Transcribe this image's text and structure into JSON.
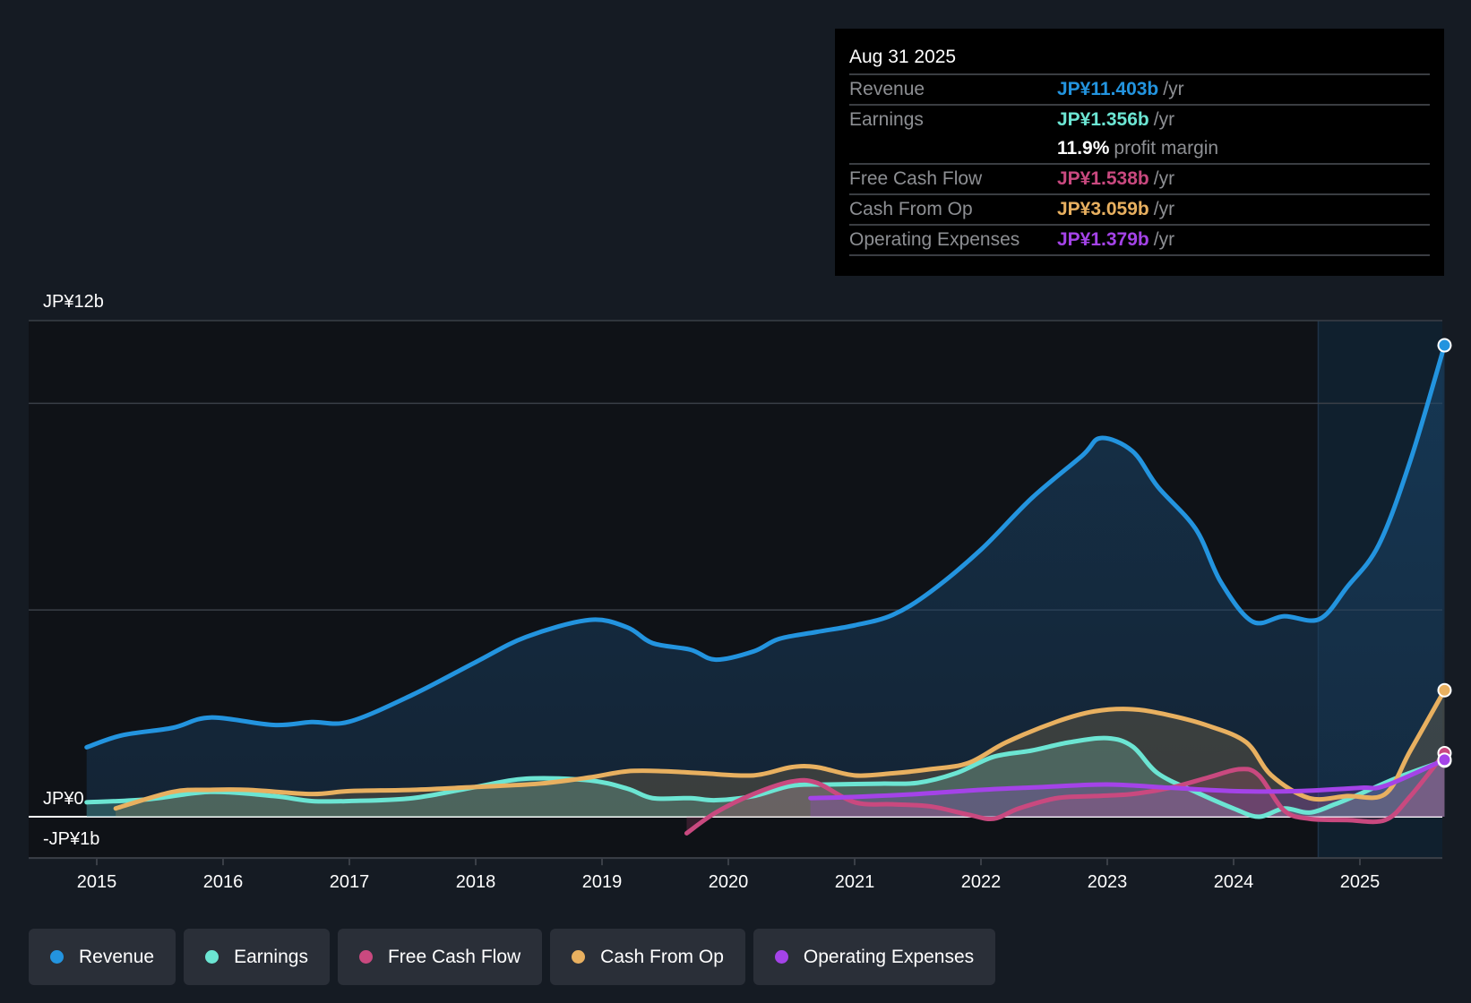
{
  "tooltip": {
    "date": "Aug 31 2025",
    "rows": [
      {
        "label": "Revenue",
        "value": "JP¥11.403b",
        "unit": "/yr",
        "color": "#2394df"
      },
      {
        "label": "Earnings",
        "value": "JP¥1.356b",
        "unit": "/yr",
        "color": "#6ce5d3"
      },
      {
        "label": "",
        "value": "11.9%",
        "unit": "profit margin",
        "color": "#ffffff"
      },
      {
        "label": "Free Cash Flow",
        "value": "JP¥1.538b",
        "unit": "/yr",
        "color": "#c9497f"
      },
      {
        "label": "Cash From Op",
        "value": "JP¥3.059b",
        "unit": "/yr",
        "color": "#e8b060"
      },
      {
        "label": "Operating Expenses",
        "value": "JP¥1.379b",
        "unit": "/yr",
        "color": "#a443e8"
      }
    ]
  },
  "legend": [
    {
      "label": "Revenue",
      "color": "#2394df"
    },
    {
      "label": "Earnings",
      "color": "#6ce5d3"
    },
    {
      "label": "Free Cash Flow",
      "color": "#c9497f"
    },
    {
      "label": "Cash From Op",
      "color": "#e8b060"
    },
    {
      "label": "Operating Expenses",
      "color": "#a443e8"
    }
  ],
  "chart_data": {
    "type": "area",
    "title": "",
    "xlabel": "",
    "ylabel": "",
    "y_unit": "JP¥ billions",
    "ylim": [
      -1,
      12
    ],
    "xlim": [
      2014.4,
      2025.85
    ],
    "y_labels": [
      {
        "value": 12,
        "label": "JP¥12b"
      },
      {
        "value": 0,
        "label": "JP¥0"
      },
      {
        "value": -1,
        "label": "-JP¥1b"
      }
    ],
    "gridlines": [
      12,
      10,
      5,
      0,
      -1
    ],
    "x_ticks": [
      2015,
      2016,
      2017,
      2018,
      2019,
      2020,
      2021,
      2022,
      2023,
      2024,
      2025
    ],
    "x_tick_labels": [
      "2015",
      "2016",
      "2017",
      "2018",
      "2019",
      "2020",
      "2021",
      "2022",
      "2023",
      "2024",
      "2025"
    ],
    "highlight_start": 2024.67,
    "legend_position": "bottom",
    "series": [
      {
        "name": "Revenue",
        "color": "#2394df",
        "x": [
          2014.92,
          2015.2,
          2015.6,
          2015.9,
          2016.4,
          2016.7,
          2017.0,
          2017.5,
          2018.0,
          2018.4,
          2018.9,
          2019.2,
          2019.4,
          2019.7,
          2019.9,
          2020.2,
          2020.4,
          2020.7,
          2021.0,
          2021.3,
          2021.6,
          2022.0,
          2022.4,
          2022.8,
          2022.95,
          2023.2,
          2023.4,
          2023.7,
          2023.9,
          2024.15,
          2024.4,
          2024.68,
          2024.9,
          2025.15,
          2025.4,
          2025.67
        ],
        "values": [
          1.68,
          1.97,
          2.15,
          2.4,
          2.22,
          2.29,
          2.3,
          2.95,
          3.74,
          4.35,
          4.76,
          4.58,
          4.2,
          4.04,
          3.8,
          4.0,
          4.3,
          4.47,
          4.63,
          4.88,
          5.44,
          6.46,
          7.7,
          8.73,
          9.16,
          8.84,
          7.98,
          6.96,
          5.67,
          4.72,
          4.85,
          4.78,
          5.56,
          6.58,
          8.62,
          11.403
        ]
      },
      {
        "name": "Earnings",
        "color": "#6ce5d3",
        "x": [
          2014.92,
          2015.4,
          2015.9,
          2016.4,
          2016.7,
          2017.0,
          2017.5,
          2018.0,
          2018.4,
          2018.9,
          2019.2,
          2019.4,
          2019.7,
          2019.9,
          2020.2,
          2020.5,
          2020.8,
          2021.2,
          2021.5,
          2021.8,
          2022.1,
          2022.4,
          2022.7,
          2023.0,
          2023.2,
          2023.4,
          2023.7,
          2024.0,
          2024.2,
          2024.4,
          2024.6,
          2024.8,
          2025.0,
          2025.3,
          2025.67
        ],
        "values": [
          0.35,
          0.42,
          0.6,
          0.5,
          0.38,
          0.38,
          0.45,
          0.72,
          0.92,
          0.88,
          0.68,
          0.45,
          0.45,
          0.4,
          0.5,
          0.75,
          0.78,
          0.8,
          0.82,
          1.05,
          1.45,
          1.6,
          1.8,
          1.9,
          1.7,
          1.05,
          0.6,
          0.2,
          0.0,
          0.2,
          0.1,
          0.3,
          0.55,
          0.95,
          1.356
        ]
      },
      {
        "name": "Free Cash Flow",
        "color": "#c9497f",
        "x": [
          2019.67,
          2019.9,
          2020.2,
          2020.5,
          2020.7,
          2021.0,
          2021.3,
          2021.6,
          2021.9,
          2022.1,
          2022.3,
          2022.6,
          2022.9,
          2023.2,
          2023.5,
          2023.8,
          2024.05,
          2024.2,
          2024.4,
          2024.6,
          2024.9,
          2025.2,
          2025.4,
          2025.67
        ],
        "values": [
          -0.4,
          0.1,
          0.55,
          0.85,
          0.82,
          0.35,
          0.3,
          0.25,
          0.05,
          -0.05,
          0.2,
          0.45,
          0.5,
          0.55,
          0.7,
          0.95,
          1.15,
          1.0,
          0.15,
          -0.05,
          -0.08,
          -0.08,
          0.5,
          1.538
        ]
      },
      {
        "name": "Cash From Op",
        "color": "#e8b060",
        "x": [
          2015.15,
          2015.6,
          2015.9,
          2016.2,
          2016.7,
          2017.0,
          2017.5,
          2018.0,
          2018.5,
          2018.9,
          2019.2,
          2019.5,
          2019.8,
          2020.2,
          2020.5,
          2020.7,
          2021.0,
          2021.3,
          2021.6,
          2021.9,
          2022.2,
          2022.6,
          2022.9,
          2023.2,
          2023.5,
          2023.8,
          2024.1,
          2024.3,
          2024.6,
          2024.9,
          2025.2,
          2025.4,
          2025.67
        ],
        "values": [
          0.2,
          0.6,
          0.65,
          0.65,
          0.55,
          0.62,
          0.65,
          0.72,
          0.8,
          0.95,
          1.1,
          1.1,
          1.05,
          1.0,
          1.2,
          1.2,
          1.0,
          1.05,
          1.15,
          1.3,
          1.8,
          2.3,
          2.55,
          2.6,
          2.45,
          2.2,
          1.8,
          1.0,
          0.45,
          0.5,
          0.55,
          1.6,
          3.059
        ]
      },
      {
        "name": "Operating Expenses",
        "color": "#a443e8",
        "x": [
          2020.65,
          2021.0,
          2021.5,
          2022.0,
          2022.5,
          2023.0,
          2023.5,
          2024.0,
          2024.5,
          2025.0,
          2025.2,
          2025.67
        ],
        "values": [
          0.45,
          0.48,
          0.55,
          0.65,
          0.72,
          0.78,
          0.7,
          0.62,
          0.62,
          0.7,
          0.75,
          1.379
        ]
      }
    ]
  }
}
